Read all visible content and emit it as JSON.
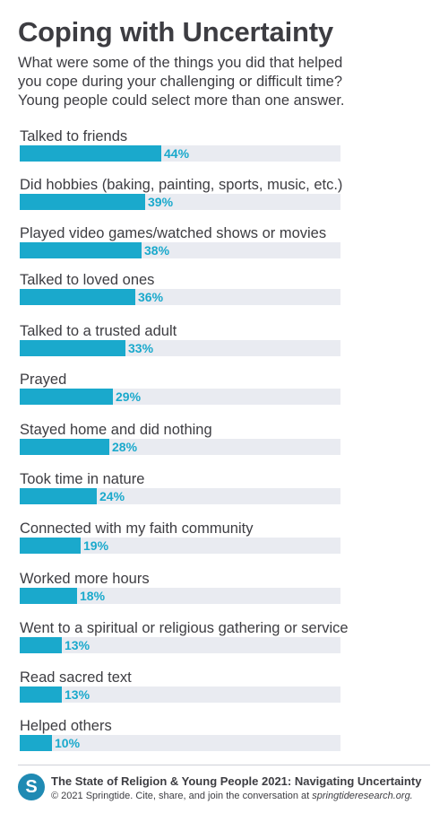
{
  "header": {
    "title": "Coping with Uncertainty",
    "subtitle_lines": [
      "What were some of the things you did that helped",
      "you cope during your challenging or difficult time?",
      "Young people could select more than one answer."
    ]
  },
  "colors": {
    "bar": "#1aa9cc",
    "track": "#e9ebf1",
    "text": "#3d3d42",
    "logo": "#1f8ab3"
  },
  "chart_data": {
    "type": "bar",
    "orientation": "horizontal",
    "unit": "%",
    "xlim": [
      0,
      100
    ],
    "categories": [
      "Talked to friends",
      "Did hobbies (baking, painting, sports, music, etc.)",
      "Played video games/watched shows or movies",
      "Talked to loved ones",
      "Talked to a trusted adult",
      "Prayed",
      "Stayed home and did nothing",
      "Took time in nature",
      "Connected with my faith community",
      "Worked more hours",
      "Went to a spiritual or religious gathering or service",
      "Read sacred text",
      "Helped others"
    ],
    "values": [
      44,
      39,
      38,
      36,
      33,
      29,
      28,
      24,
      19,
      18,
      13,
      13,
      10
    ],
    "value_labels": [
      "44%",
      "39%",
      "38%",
      "36%",
      "33%",
      "29%",
      "28%",
      "24%",
      "19%",
      "18%",
      "13%",
      "13%",
      "10%"
    ]
  },
  "footer": {
    "logo_letter": "S",
    "title": "The State of Religion & Young People 2021: Navigating Uncertainty",
    "credit": "© 2021 Springtide. Cite, share, and join the conversation at ",
    "site": "springtideresearch.org."
  }
}
